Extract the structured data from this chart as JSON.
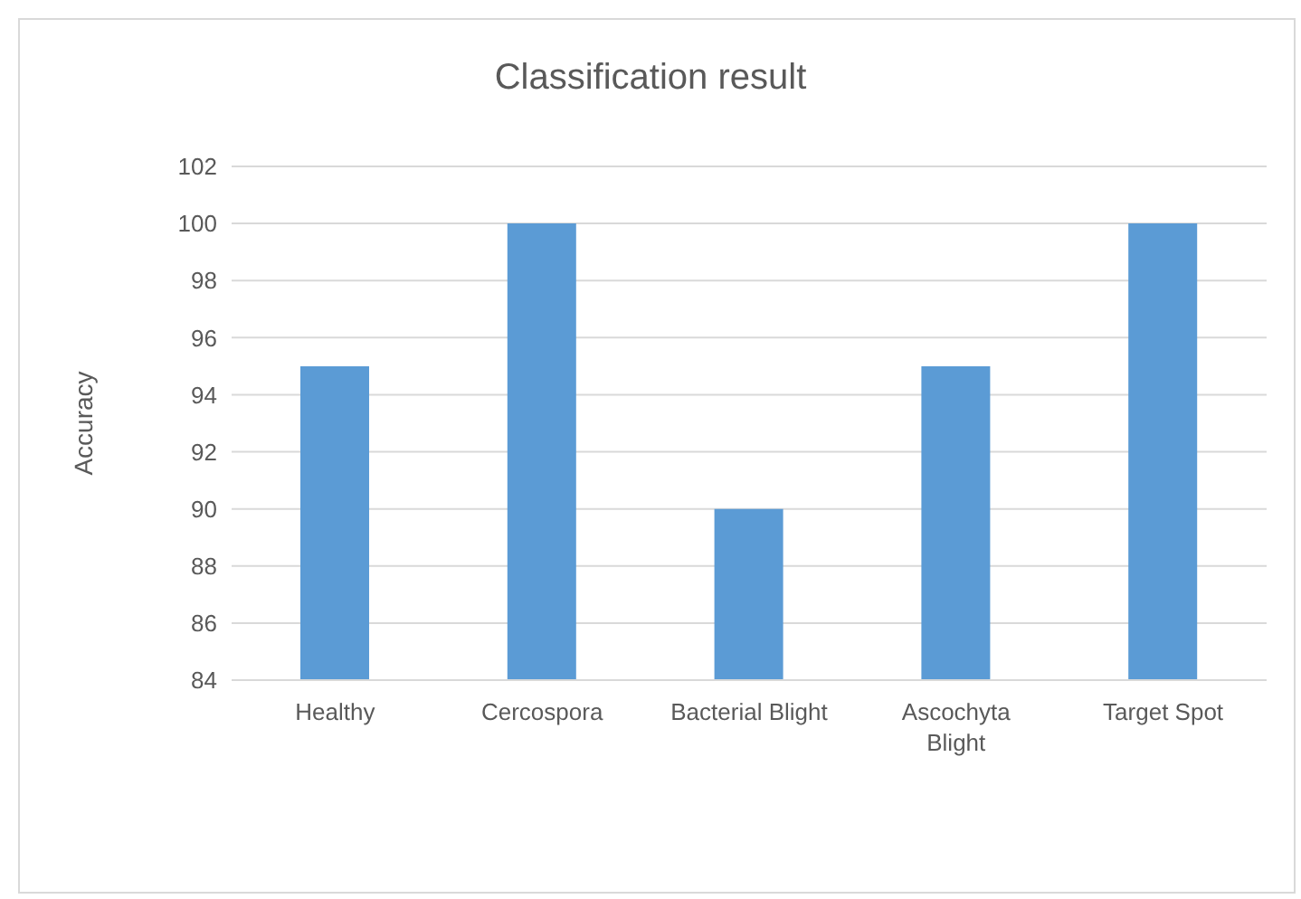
{
  "chart_data": {
    "type": "bar",
    "title": "Classification result",
    "ylabel": "Accuracy",
    "categories": [
      "Healthy",
      "Cercospora",
      "Bacterial Blight",
      "Ascochyta Blight",
      "Target Spot"
    ],
    "values": [
      95,
      100,
      90,
      95,
      100
    ],
    "color": "#5b9bd5",
    "ylim": [
      84,
      102
    ],
    "yticks": [
      84,
      86,
      88,
      90,
      92,
      94,
      96,
      98,
      100,
      102
    ],
    "grid": "y",
    "legend": false
  }
}
